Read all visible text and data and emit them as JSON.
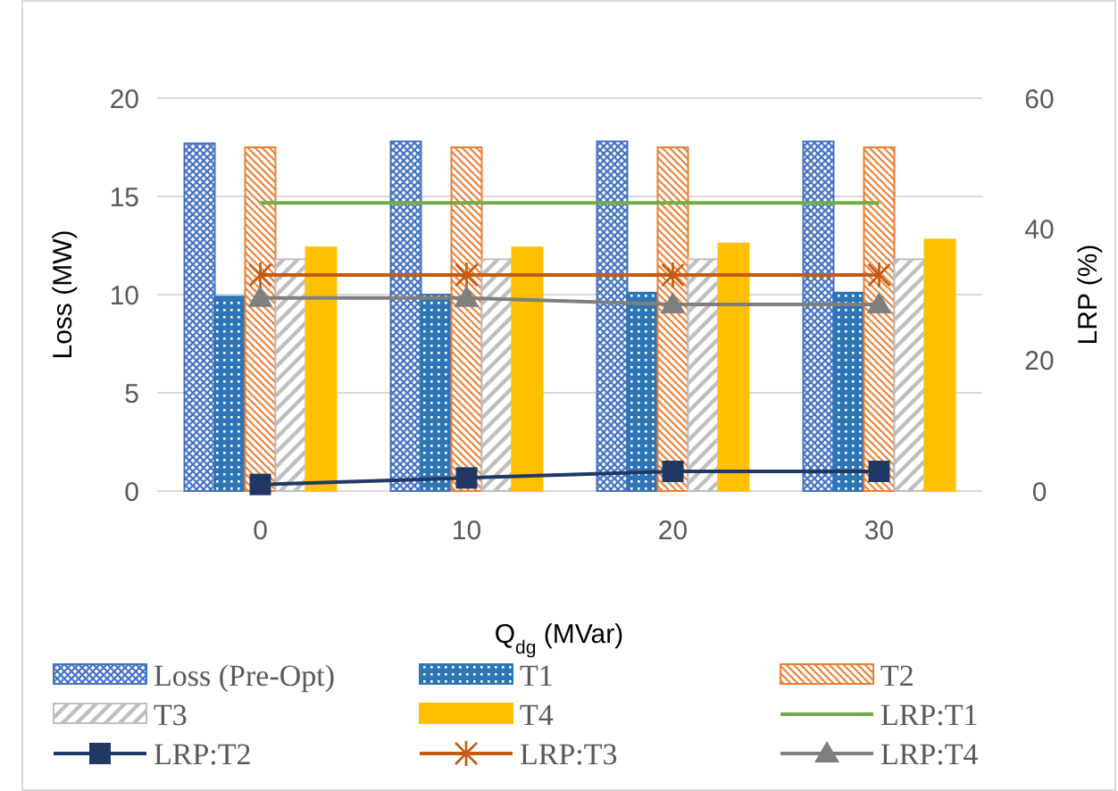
{
  "chart_data": {
    "type": "bar",
    "xlabel": "Q$_{dg}$ (MVar)",
    "ylabel": "Loss (MW)",
    "y2label": "LRP (%)",
    "categories": [
      "0",
      "10",
      "20",
      "30"
    ],
    "ylim": [
      0,
      20
    ],
    "yticks": [
      0,
      5,
      10,
      15,
      20
    ],
    "y2lim": [
      0,
      60
    ],
    "y2ticks": [
      0,
      20,
      40,
      60
    ],
    "grid": "y",
    "legend": "bottom",
    "series": [
      {
        "name": "Loss (Pre-Opt)",
        "color": "#4472c4",
        "values": [
          17.7,
          17.8,
          17.8,
          17.8
        ]
      },
      {
        "name": "T1",
        "color": "#2e75b6",
        "values": [
          9.9,
          10.0,
          10.1,
          10.1
        ]
      },
      {
        "name": "T2",
        "color": "#ed7d31",
        "values": [
          17.5,
          17.5,
          17.5,
          17.5
        ]
      },
      {
        "name": "T3",
        "color": "#bfbfbf",
        "values": [
          11.8,
          11.8,
          11.8,
          11.8
        ]
      },
      {
        "name": "T4",
        "color": "#ffc000",
        "values": [
          12.4,
          12.4,
          12.6,
          12.8
        ]
      },
      {
        "name": "LRP:T1",
        "type": "line",
        "axis": "y2",
        "color": "#70ad47",
        "marker": "none",
        "values": [
          44,
          44,
          44,
          44
        ]
      },
      {
        "name": "LRP:T2",
        "type": "line",
        "axis": "y2",
        "color": "#203864",
        "marker": "square",
        "values": [
          1,
          2,
          3,
          3
        ]
      },
      {
        "name": "LRP:T3",
        "type": "line",
        "axis": "y2",
        "color": "#c55a11",
        "marker": "cross",
        "values": [
          33,
          33,
          33,
          33
        ]
      },
      {
        "name": "LRP:T4",
        "type": "line",
        "axis": "y2",
        "color": "#7f7f7f",
        "marker": "triangle",
        "values": [
          29.5,
          29.5,
          28.5,
          28.5
        ]
      }
    ]
  }
}
